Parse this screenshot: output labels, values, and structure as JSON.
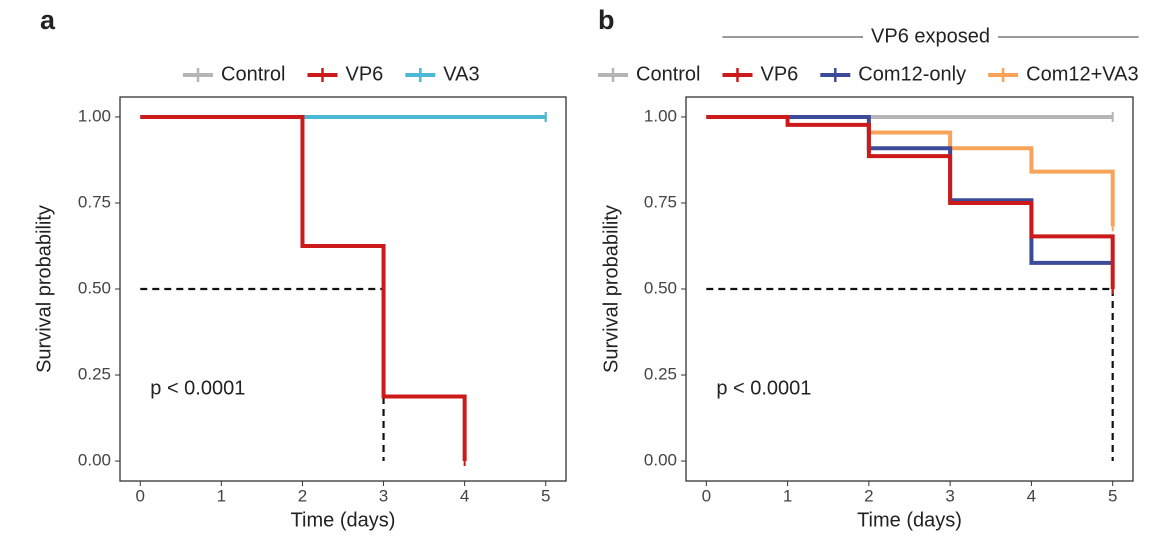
{
  "chart_data": [
    {
      "type": "step",
      "panel_label": "a",
      "xlabel": "Time (days)",
      "ylabel": "Survival probability",
      "pvalue_text": "p < 0.0001",
      "xlim": [
        -0.25,
        5.25
      ],
      "ylim": [
        -0.058,
        1.058
      ],
      "xticks": [
        0,
        1,
        2,
        3,
        4,
        5
      ],
      "yticks": [
        {
          "value": 0,
          "label": "0.00"
        },
        {
          "value": 0.25,
          "label": "0.25"
        },
        {
          "value": 0.5,
          "label": "0.50"
        },
        {
          "value": 0.75,
          "label": "0.75"
        },
        {
          "value": 1,
          "label": "1.00"
        }
      ],
      "median": {
        "y": 0.5,
        "x": 3
      },
      "series": [
        {
          "name": "Control",
          "color": "#b5b5b5",
          "x": [
            0,
            5
          ],
          "values": [
            1,
            1
          ]
        },
        {
          "name": "VP6",
          "color": "#cc1a1a",
          "x": [
            0,
            2,
            3,
            4
          ],
          "values": [
            1,
            0.625,
            0.1875,
            0
          ]
        },
        {
          "name": "VA3",
          "color": "#4bb9d5",
          "x": [
            0,
            5
          ],
          "values": [
            1,
            1
          ]
        }
      ]
    },
    {
      "type": "step",
      "panel_label": "b",
      "xlabel": "Time (days)",
      "ylabel": "Survival probability",
      "pvalue_text": "p < 0.0001",
      "annotation": "VP6 exposed",
      "xlim": [
        -0.25,
        5.25
      ],
      "ylim": [
        -0.058,
        1.058
      ],
      "xticks": [
        0,
        1,
        2,
        3,
        4,
        5
      ],
      "yticks": [
        {
          "value": 0,
          "label": "0.00"
        },
        {
          "value": 0.25,
          "label": "0.25"
        },
        {
          "value": 0.5,
          "label": "0.50"
        },
        {
          "value": 0.75,
          "label": "0.75"
        },
        {
          "value": 1,
          "label": "1.00"
        }
      ],
      "median": {
        "y": 0.5,
        "x": 5
      },
      "series": [
        {
          "name": "Control",
          "color": "#b5b5b5",
          "x": [
            0,
            5
          ],
          "values": [
            1,
            1
          ]
        },
        {
          "name": "VP6",
          "color": "#cc1a1a",
          "x": [
            0,
            1,
            2,
            3,
            4,
            5
          ],
          "values": [
            1,
            0.977,
            0.886,
            0.75,
            0.653,
            0.5
          ]
        },
        {
          "name": "Com12-only",
          "color": "#3c4a9a",
          "x": [
            0,
            2,
            3,
            4,
            5
          ],
          "values": [
            1,
            0.909,
            0.758,
            0.576,
            0.576
          ]
        },
        {
          "name": "Com12+VA3",
          "color": "#f7a45a",
          "x": [
            0,
            2,
            3,
            4,
            5
          ],
          "values": [
            1,
            0.955,
            0.909,
            0.841,
            0.682
          ]
        }
      ]
    }
  ]
}
